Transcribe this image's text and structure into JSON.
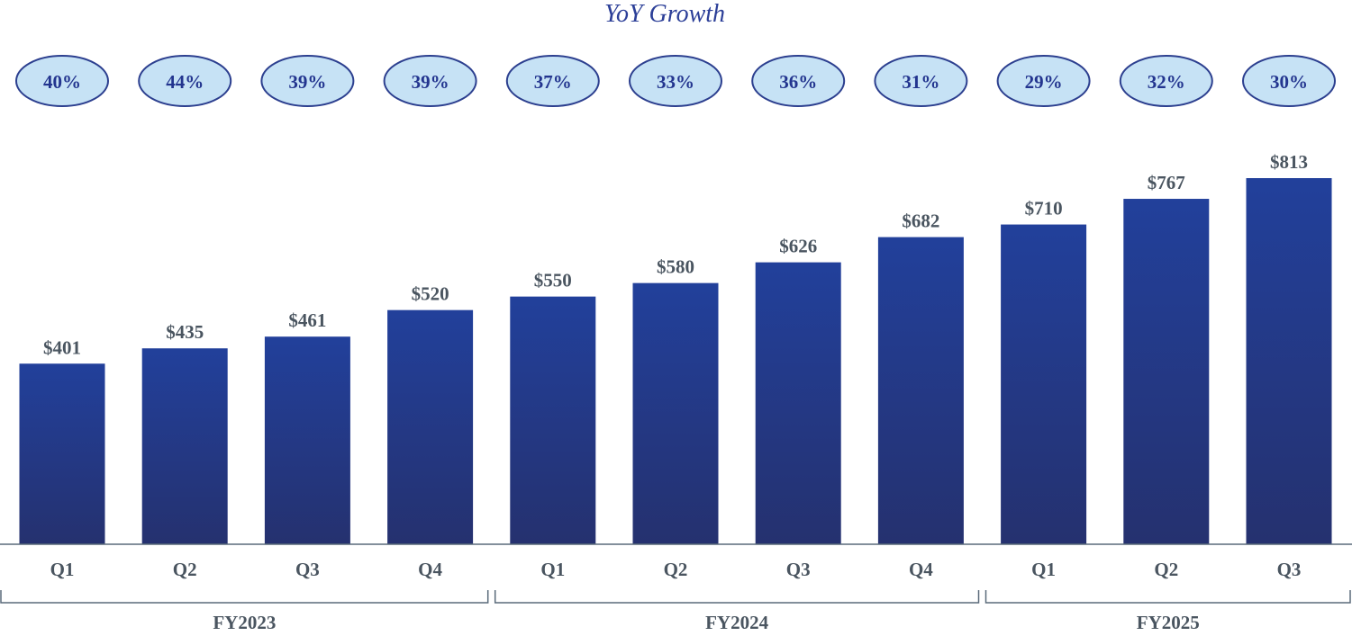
{
  "chart_data": {
    "type": "bar",
    "title": "YoY Growth",
    "categories": [
      "Q1",
      "Q2",
      "Q3",
      "Q4",
      "Q1",
      "Q2",
      "Q3",
      "Q4",
      "Q1",
      "Q2",
      "Q3"
    ],
    "values": [
      401,
      435,
      461,
      520,
      550,
      580,
      626,
      682,
      710,
      767,
      813
    ],
    "value_labels": [
      "$401",
      "$435",
      "$461",
      "$520",
      "$550",
      "$580",
      "$626",
      "$682",
      "$710",
      "$767",
      "$813"
    ],
    "yoy_growth": [
      "40%",
      "44%",
      "39%",
      "39%",
      "37%",
      "33%",
      "36%",
      "31%",
      "29%",
      "32%",
      "30%"
    ],
    "groups": [
      {
        "label": "FY2023",
        "count": 4
      },
      {
        "label": "FY2024",
        "count": 4
      },
      {
        "label": "FY2025",
        "count": 3
      }
    ],
    "ylim": [
      0,
      813
    ],
    "xlabel": "",
    "ylabel": "",
    "grid": false
  },
  "colors": {
    "bar_top": "#22409b",
    "bar_bottom": "#25316f",
    "bubble_fill": "#c6e2f5",
    "bubble_stroke": "#2c3f8f",
    "axis": "#5a6a7a"
  }
}
